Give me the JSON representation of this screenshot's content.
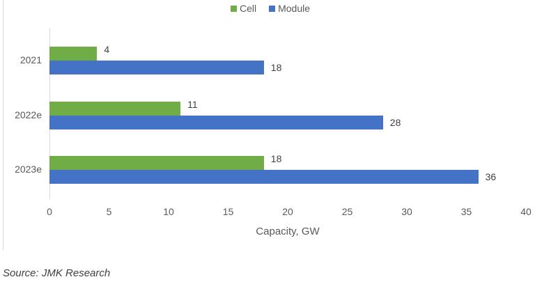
{
  "chart_data": {
    "type": "bar",
    "orientation": "horizontal",
    "title": "",
    "categories": [
      "2021",
      "2022e",
      "2023e"
    ],
    "series": [
      {
        "name": "Cell",
        "color": "#70ad47",
        "values": [
          4,
          11,
          18
        ]
      },
      {
        "name": "Module",
        "color": "#4472c4",
        "values": [
          18,
          28,
          36
        ]
      }
    ],
    "xlabel": "Capacity, GW",
    "ylabel": "",
    "xlim": [
      0,
      40
    ],
    "x_ticks": [
      "0",
      "5",
      "10",
      "15",
      "20",
      "25",
      "30",
      "35",
      "40"
    ],
    "grid": false,
    "legend_position": "top",
    "data_labels": true
  },
  "legend": {
    "cell": "Cell",
    "module": "Module"
  },
  "axis": {
    "xlabel": "Capacity, GW"
  },
  "source": "Source: JMK Research"
}
